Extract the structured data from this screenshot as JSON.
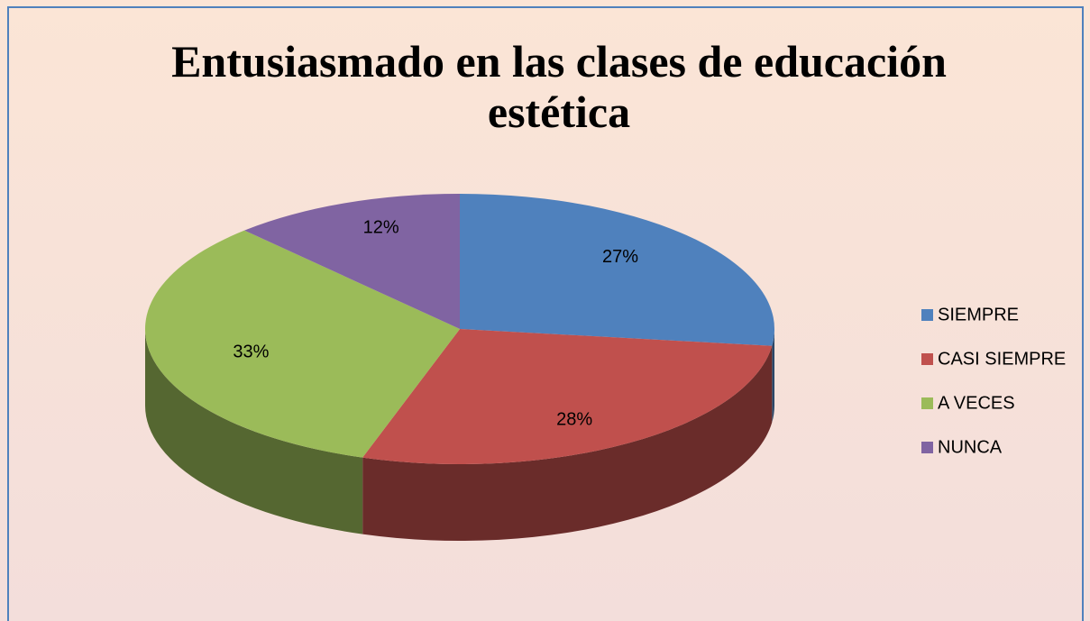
{
  "chart_data": {
    "type": "pie",
    "title": "Entusiasmado en las clases de educación estética",
    "categories": [
      "SIEMPRE",
      "CASI SIEMPRE",
      "A VECES",
      "NUNCA"
    ],
    "values": [
      27,
      28,
      33,
      12
    ],
    "value_labels": [
      "27%",
      "28%",
      "33%",
      "12%"
    ],
    "colors": [
      "#4f81bd",
      "#c0504d",
      "#9bbb59",
      "#8064a2"
    ],
    "legend": "right"
  }
}
